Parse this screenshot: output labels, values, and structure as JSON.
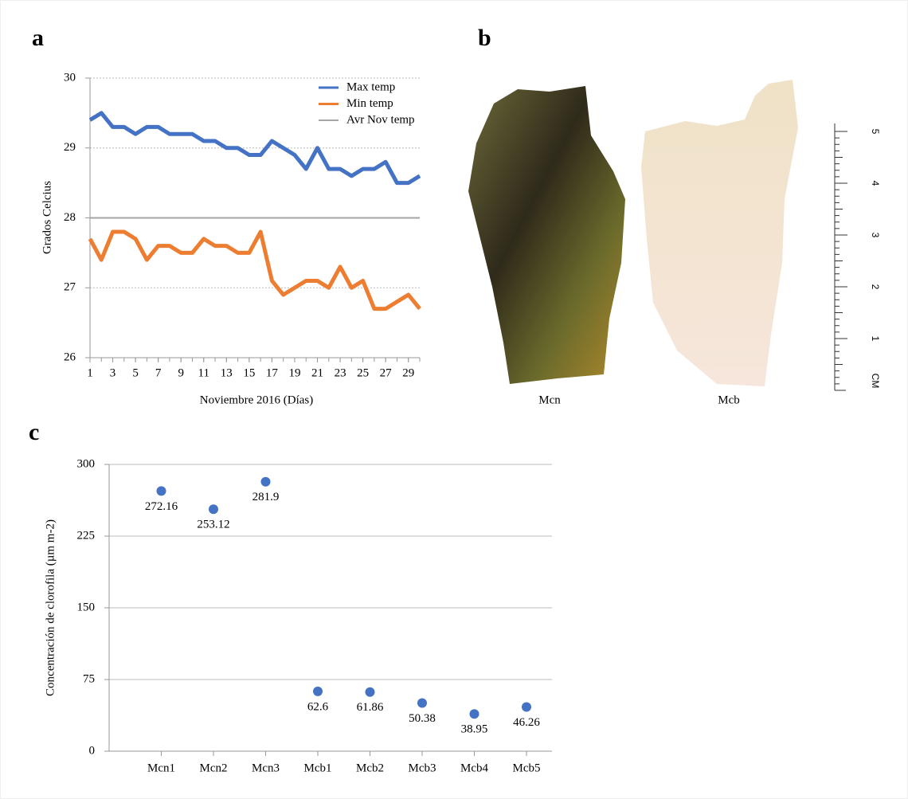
{
  "chart_data": [
    {
      "type": "line",
      "panel": "a",
      "y_label": "Grados Celcius",
      "x_label": "Noviembre 2016 (Días)",
      "x": [
        1,
        2,
        3,
        4,
        5,
        6,
        7,
        8,
        9,
        10,
        11,
        12,
        13,
        14,
        15,
        16,
        17,
        18,
        19,
        20,
        21,
        22,
        23,
        24,
        25,
        26,
        27,
        28,
        29,
        30
      ],
      "xlim": [
        1,
        30
      ],
      "xticks": [
        1,
        3,
        5,
        7,
        9,
        11,
        13,
        15,
        17,
        19,
        21,
        23,
        25,
        27,
        29
      ],
      "ylim": [
        26,
        30
      ],
      "yticks": [
        26,
        27,
        28,
        29,
        30
      ],
      "grid": true,
      "legend": "top-right",
      "series": [
        {
          "name": "Max temp",
          "color": "#4472c4",
          "values": [
            29.4,
            29.5,
            29.3,
            29.3,
            29.2,
            29.3,
            29.3,
            29.2,
            29.2,
            29.2,
            29.1,
            29.1,
            29.0,
            29.0,
            28.9,
            28.9,
            29.1,
            29.0,
            28.9,
            28.7,
            29.0,
            28.7,
            28.7,
            28.6,
            28.7,
            28.7,
            28.8,
            28.5,
            28.5,
            28.6
          ]
        },
        {
          "name": "Min temp",
          "color": "#ed7d31",
          "values": [
            27.7,
            27.4,
            27.8,
            27.8,
            27.7,
            27.4,
            27.6,
            27.6,
            27.5,
            27.5,
            27.7,
            27.6,
            27.6,
            27.5,
            27.5,
            27.8,
            27.1,
            26.9,
            27.0,
            27.1,
            27.1,
            27.0,
            27.3,
            27.0,
            27.1,
            26.7,
            26.7,
            26.8,
            26.9,
            26.7
          ]
        },
        {
          "name": "Avr Nov temp",
          "color": "#a5a5a5",
          "values": [
            28,
            28,
            28,
            28,
            28,
            28,
            28,
            28,
            28,
            28,
            28,
            28,
            28,
            28,
            28,
            28,
            28,
            28,
            28,
            28,
            28,
            28,
            28,
            28,
            28,
            28,
            28,
            28,
            28,
            28
          ]
        }
      ]
    },
    {
      "type": "scatter",
      "panel": "c",
      "y_label": "Concentración de clorofila (µm m-2)",
      "categories": [
        "Mcn1",
        "Mcn2",
        "Mcn3",
        "Mcb1",
        "Mcb2",
        "Mcb3",
        "Mcb4",
        "Mcb5"
      ],
      "values": [
        272.16,
        253.12,
        281.9,
        62.6,
        61.86,
        50.38,
        38.95,
        46.26
      ],
      "color": "#4472c4",
      "ylim": [
        0,
        300
      ],
      "yticks": [
        0,
        75,
        150,
        225,
        300
      ],
      "grid": true
    }
  ],
  "photo": {
    "panel": "b",
    "labels": [
      "Mcn",
      "Mcb"
    ],
    "scale": {
      "unit": "CM",
      "ticks": [
        1,
        2,
        3,
        4,
        5
      ]
    }
  }
}
